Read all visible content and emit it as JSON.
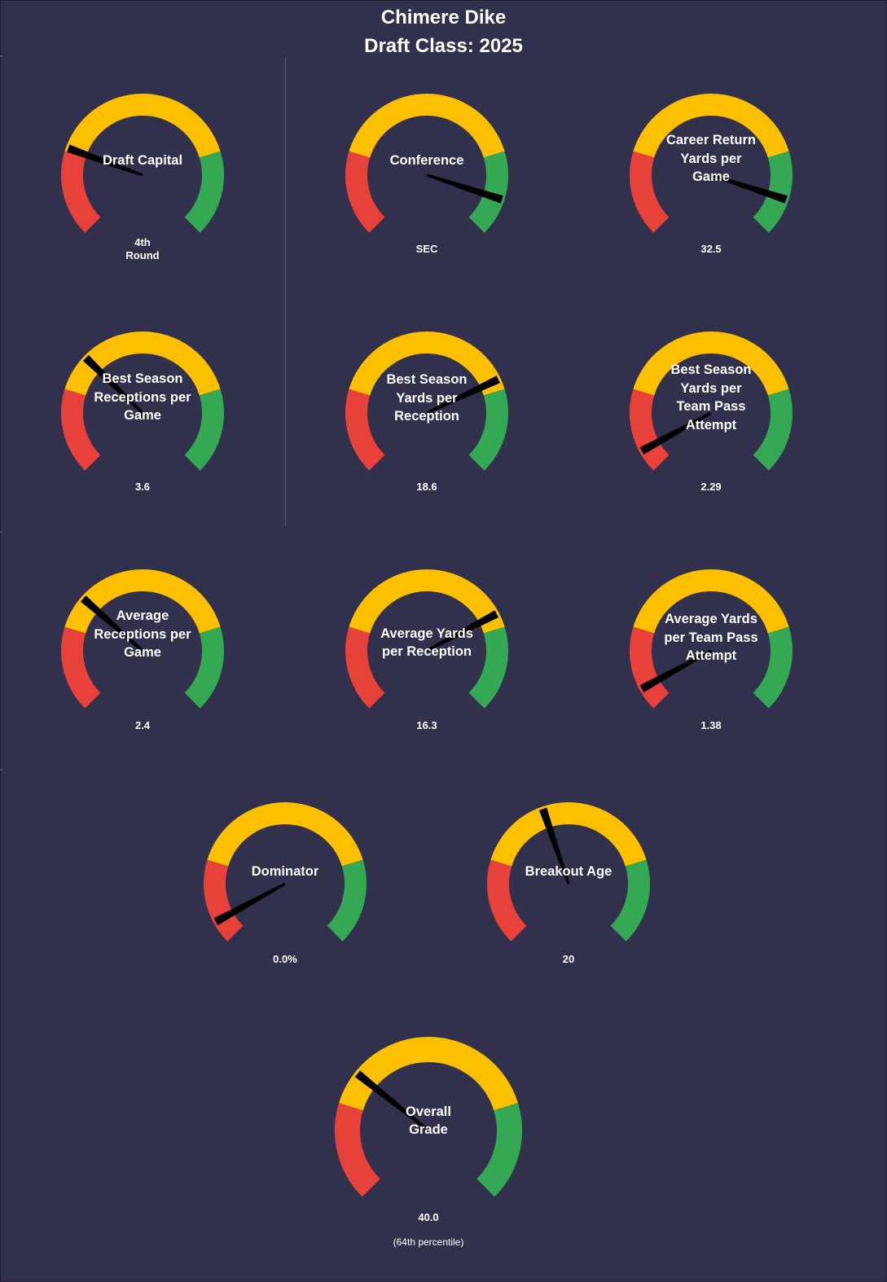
{
  "header": {
    "player_name": "Chimere Dike",
    "draft_class": "Draft Class: 2025"
  },
  "colors": {
    "background": "#31304d",
    "low": "#e8413a",
    "mid": "#fcc000",
    "high": "#34a853",
    "needle": "#000000",
    "text": "#ffffff"
  },
  "chart_data": [
    {
      "type": "gauge",
      "label_lines": [
        "Draft Capital"
      ],
      "value_lines": [
        "4th",
        "Round"
      ],
      "needle_pct": 0.24,
      "bands": [
        "low",
        "mid",
        "high"
      ]
    },
    {
      "type": "gauge",
      "label_lines": [
        "Conference"
      ],
      "value_lines": [
        "SEC"
      ],
      "needle_pct": 0.9,
      "bands": [
        "low",
        "mid",
        "high"
      ]
    },
    {
      "type": "gauge",
      "label_lines": [
        "Career Return",
        "Yards per",
        "Game"
      ],
      "value_lines": [
        "32.5"
      ],
      "needle_pct": 0.9,
      "bands": [
        "low",
        "mid",
        "high"
      ]
    },
    {
      "type": "gauge",
      "label_lines": [
        "Best Season",
        "Receptions per",
        "Game"
      ],
      "value_lines": [
        "3.6"
      ],
      "needle_pct": 0.33,
      "bands": [
        "low",
        "mid",
        "high"
      ]
    },
    {
      "type": "gauge",
      "label_lines": [
        "Best Season",
        "Yards per",
        "Reception"
      ],
      "value_lines": [
        "18.6"
      ],
      "needle_pct": 0.74,
      "bands": [
        "low",
        "mid",
        "high"
      ]
    },
    {
      "type": "gauge",
      "label_lines": [
        "Best Season",
        "Yards per",
        "Team Pass",
        "Attempt"
      ],
      "value_lines": [
        "2.29"
      ],
      "needle_pct": 0.06,
      "bands": [
        "low",
        "mid",
        "high"
      ]
    },
    {
      "type": "gauge",
      "label_lines": [
        "Average",
        "Receptions per",
        "Game"
      ],
      "value_lines": [
        "2.4"
      ],
      "needle_pct": 0.32,
      "bands": [
        "low",
        "mid",
        "high"
      ]
    },
    {
      "type": "gauge",
      "label_lines": [
        "Average Yards",
        "per Reception"
      ],
      "value_lines": [
        "16.3"
      ],
      "needle_pct": 0.73,
      "bands": [
        "low",
        "mid",
        "high"
      ]
    },
    {
      "type": "gauge",
      "label_lines": [
        "Average Yards",
        "per Team Pass",
        "Attempt"
      ],
      "value_lines": [
        "1.38"
      ],
      "needle_pct": 0.06,
      "bands": [
        "low",
        "mid",
        "high"
      ]
    },
    {
      "type": "gauge",
      "label_lines": [
        "Dominator"
      ],
      "value_lines": [
        "0.0%"
      ],
      "needle_pct": 0.06,
      "bands": [
        "low",
        "mid",
        "high"
      ]
    },
    {
      "type": "gauge",
      "label_lines": [
        "Breakout Age"
      ],
      "value_lines": [
        "20"
      ],
      "needle_pct": 0.43,
      "bands": [
        "low",
        "mid",
        "high"
      ]
    },
    {
      "type": "gauge",
      "label_lines": [
        "Overall",
        "Grade"
      ],
      "value_lines": [
        "40.0",
        "(64th  percentile)"
      ],
      "needle_pct": 0.31,
      "bands": [
        "low",
        "mid",
        "high"
      ]
    }
  ]
}
